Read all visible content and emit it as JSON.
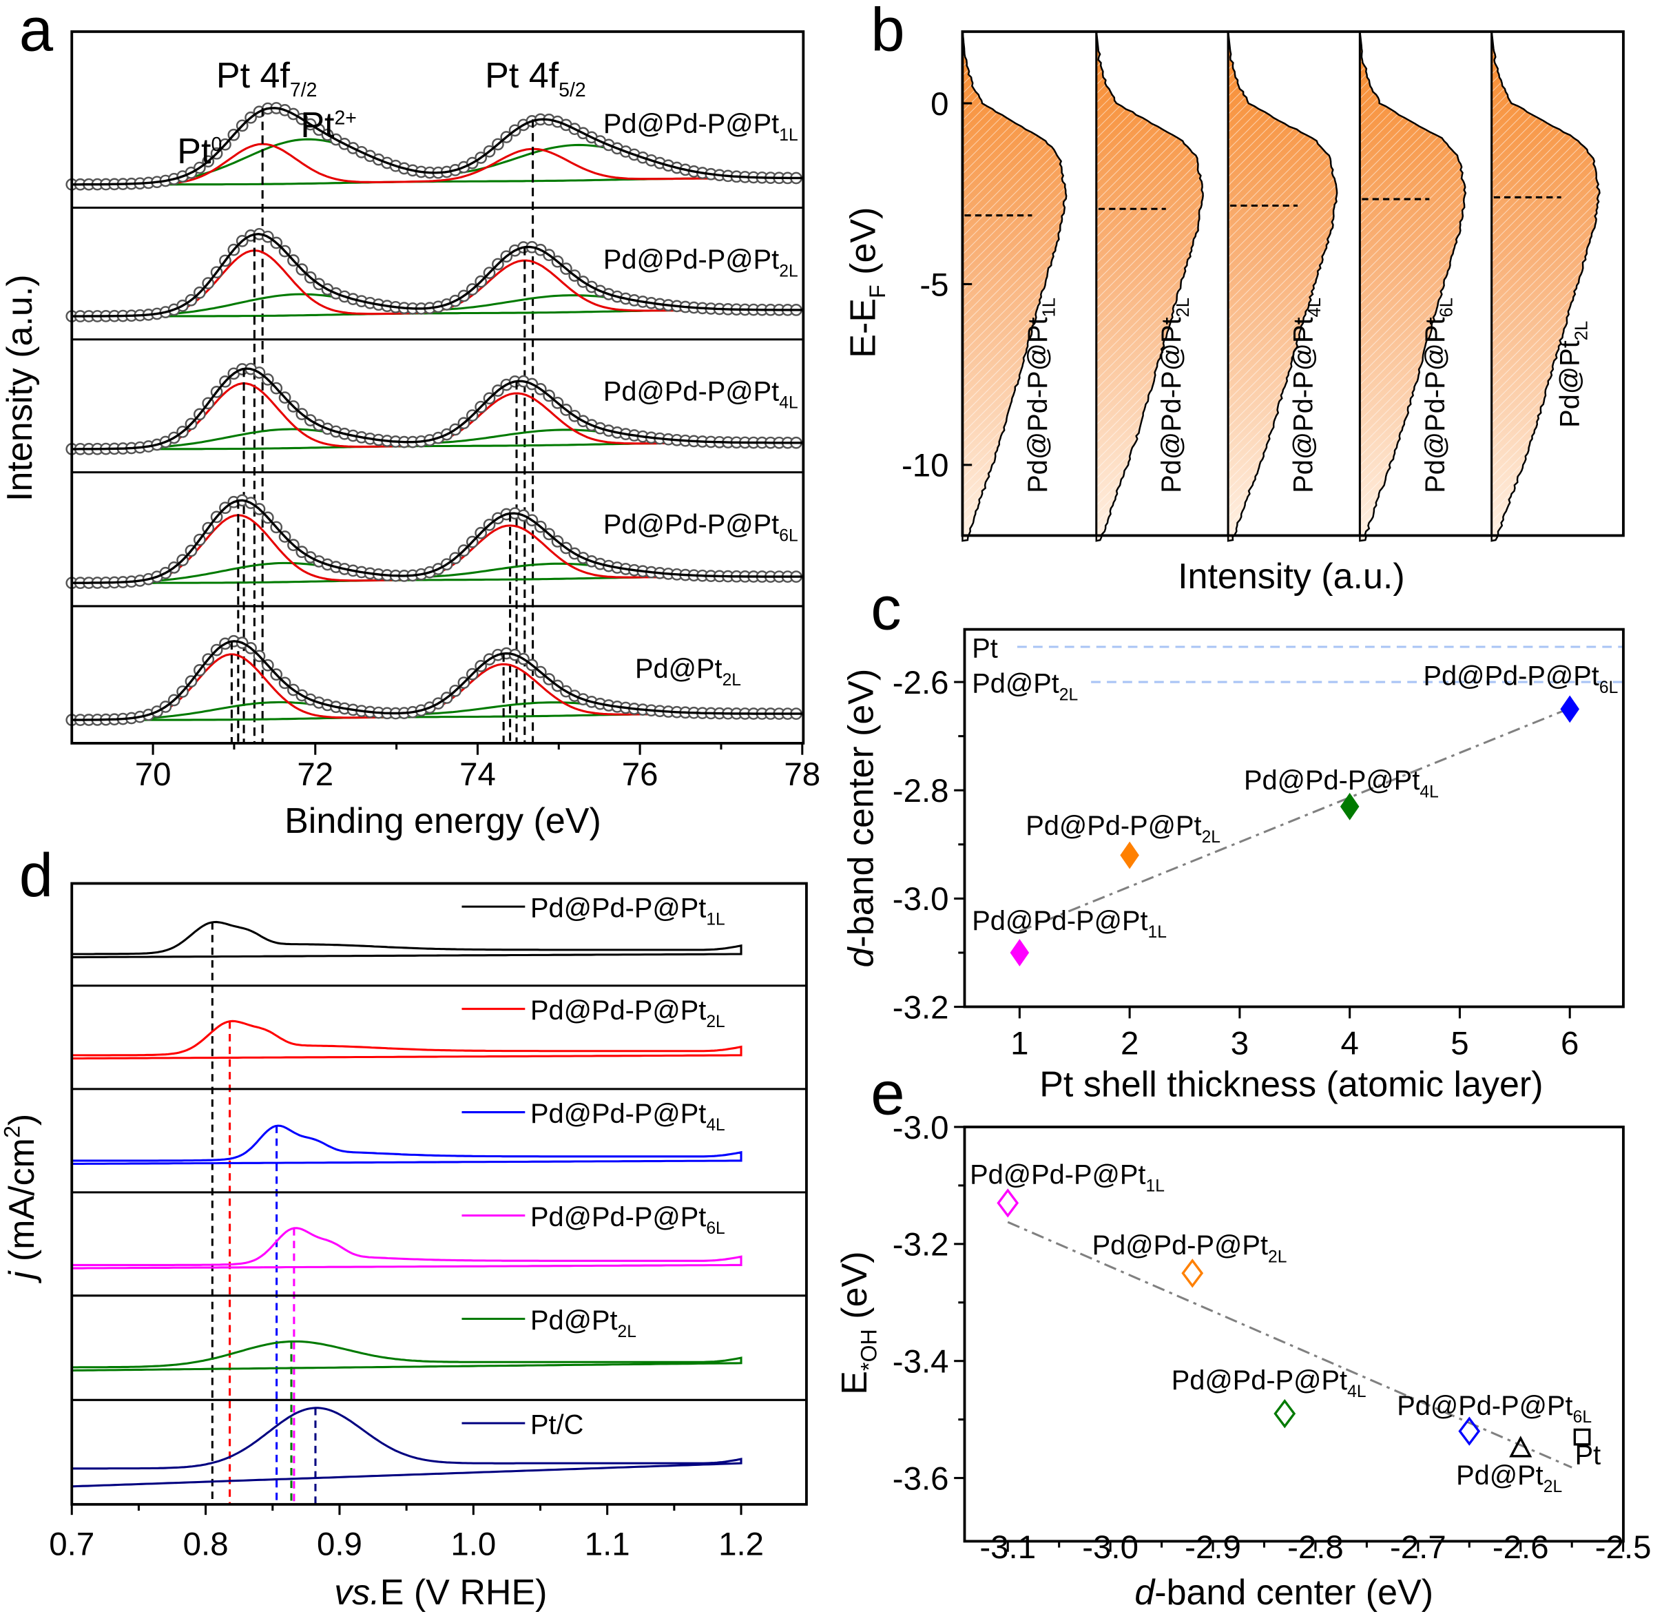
{
  "panel_letters": {
    "a": "a",
    "b": "b",
    "c": "c",
    "d": "d",
    "e": "e"
  },
  "chart_data": [
    {
      "panel": "a",
      "type": "line",
      "xlabel": "Binding energy (eV)",
      "ylabel": "Intensity (a.u.)",
      "xlim": [
        69,
        78
      ],
      "xticks": [
        "70",
        "72",
        "74",
        "76",
        "78"
      ],
      "peak_labels": [
        {
          "main": "Pt 4f",
          "sub": "7/2"
        },
        {
          "main": "Pt 4f",
          "sub": "5/2"
        }
      ],
      "component_labels": [
        {
          "main": "Pt",
          "sup": "0",
          "color": "#e60000"
        },
        {
          "main": "Pt",
          "sup": "2+",
          "color": "#007a00"
        }
      ],
      "colors": {
        "fit": "#000000",
        "data": "#555555",
        "pt0": "#e60000",
        "pt2": "#007a00"
      },
      "series": [
        {
          "name": {
            "main": "Pd@Pd-P@Pt",
            "sub": "1L"
          },
          "pt0_4f72_eV": 71.35,
          "pt0_4f52_eV": 74.68
        },
        {
          "name": {
            "main": "Pd@Pd-P@Pt",
            "sub": "2L"
          },
          "pt0_4f72_eV": 71.25,
          "pt0_4f52_eV": 74.58
        },
        {
          "name": {
            "main": "Pd@Pd-P@Pt",
            "sub": "4L"
          },
          "pt0_4f72_eV": 71.12,
          "pt0_4f52_eV": 74.48
        },
        {
          "name": {
            "main": "Pd@Pd-P@Pt",
            "sub": "6L"
          },
          "pt0_4f72_eV": 71.05,
          "pt0_4f52_eV": 74.4
        },
        {
          "name": {
            "main": "Pd@Pt",
            "sub": "2L"
          },
          "pt0_4f72_eV": 70.97,
          "pt0_4f52_eV": 74.32
        }
      ]
    },
    {
      "panel": "b",
      "type": "area",
      "xlabel": "Intensity (a.u.)",
      "ylabel": {
        "main": "E-E",
        "sub": "F",
        "end": " (eV)"
      },
      "ylim": [
        -12.1,
        2
      ],
      "yticks": [
        "0",
        "-5",
        "-10"
      ],
      "fill_color": "#f7892a",
      "series": [
        {
          "name": {
            "main": "Pd@Pd-P@Pt",
            "sub": "1L"
          },
          "d_band_center_eV": -3.1
        },
        {
          "name": {
            "main": "Pd@Pd-P@Pt",
            "sub": "2L"
          },
          "d_band_center_eV": -2.92
        },
        {
          "name": {
            "main": "Pd@Pd-P@Pt",
            "sub": "4L"
          },
          "d_band_center_eV": -2.83
        },
        {
          "name": {
            "main": "Pd@Pd-P@Pt",
            "sub": "6L"
          },
          "d_band_center_eV": -2.65
        },
        {
          "name": {
            "main": "Pd@Pt",
            "sub": "2L"
          },
          "d_band_center_eV": -2.6
        }
      ]
    },
    {
      "panel": "c",
      "type": "scatter",
      "xlabel": "Pt shell thickness (atomic layer)",
      "ylabel": {
        "italic": "d",
        "main": "-band center (eV)"
      },
      "xlim": [
        0.5,
        6.5
      ],
      "ylim": [
        -3.2,
        -2.5
      ],
      "xticks": [
        "1",
        "2",
        "3",
        "4",
        "5",
        "6"
      ],
      "yticks": [
        "-2.6",
        "-2.8",
        "-3.0",
        "-3.2"
      ],
      "reference_lines": [
        {
          "name": {
            "main": "Pt",
            "sub": ""
          },
          "y": -2.535,
          "color": "#a9c4f5"
        },
        {
          "name": {
            "main": "Pd@Pt",
            "sub": "2L"
          },
          "y": -2.6,
          "color": "#a9c4f5"
        }
      ],
      "points": [
        {
          "x": 1,
          "y": -3.1,
          "color": "#ff00ff",
          "name": {
            "main": "Pd@Pd-P@Pt",
            "sub": "1L"
          }
        },
        {
          "x": 2,
          "y": -2.92,
          "color": "#ff8000",
          "name": {
            "main": "Pd@Pd-P@Pt",
            "sub": "2L"
          }
        },
        {
          "x": 4,
          "y": -2.83,
          "color": "#007a00",
          "name": {
            "main": "Pd@Pd-P@Pt",
            "sub": "4L"
          }
        },
        {
          "x": 6,
          "y": -2.65,
          "color": "#0000ff",
          "name": {
            "main": "Pd@Pd-P@Pt",
            "sub": "6L"
          }
        }
      ],
      "fit_line": "dash-dot gray"
    },
    {
      "panel": "d",
      "type": "line",
      "xlabel": {
        "main": "E (V ",
        "italic": "vs.",
        "end": " RHE)"
      },
      "ylabel": {
        "italic": "j",
        "main": " (mA/cm",
        "sup": "2",
        "end": ")"
      },
      "xlim": [
        0.7,
        1.25
      ],
      "xticks": [
        "0.7",
        "0.8",
        "0.9",
        "1.0",
        "1.1",
        "1.2"
      ],
      "series": [
        {
          "name": {
            "main": "Pd@Pd-P@Pt",
            "sub": "1L"
          },
          "color": "#000000",
          "peak_V": 0.805
        },
        {
          "name": {
            "main": "Pd@Pd-P@Pt",
            "sub": "2L"
          },
          "color": "#ff0000",
          "peak_V": 0.818
        },
        {
          "name": {
            "main": "Pd@Pd-P@Pt",
            "sub": "4L"
          },
          "color": "#0000ff",
          "peak_V": 0.853
        },
        {
          "name": {
            "main": "Pd@Pd-P@Pt",
            "sub": "6L"
          },
          "color": "#ff00ff",
          "peak_V": 0.866
        },
        {
          "name": {
            "main": "Pd@Pt",
            "sub": "2L"
          },
          "color": "#007a00",
          "peak_V": 0.864
        },
        {
          "name": {
            "main": "Pt/C",
            "sub": ""
          },
          "color": "#000080",
          "peak_V": 0.882
        }
      ]
    },
    {
      "panel": "e",
      "type": "scatter",
      "xlabel": {
        "italic": "d",
        "main": "-band center (eV)"
      },
      "ylabel": {
        "main": "E",
        "sub": "*OH",
        "end": " (eV)"
      },
      "xlim": [
        -3.142,
        -2.5
      ],
      "ylim": [
        -3.66,
        -3.0
      ],
      "xticks": [
        "-3.1",
        "-3.0",
        "-2.9",
        "-2.8",
        "-2.7",
        "-2.6",
        "-2.5"
      ],
      "yticks": [
        "-3.0",
        "-3.2",
        "-3.4",
        "-3.6"
      ],
      "points": [
        {
          "x": -3.1,
          "y": -3.13,
          "marker": "diamond-open",
          "color": "#ff00ff",
          "name": {
            "main": "Pd@Pd-P@Pt",
            "sub": "1L"
          }
        },
        {
          "x": -2.92,
          "y": -3.25,
          "marker": "diamond-open",
          "color": "#ff8000",
          "name": {
            "main": "Pd@Pd-P@Pt",
            "sub": "2L"
          }
        },
        {
          "x": -2.83,
          "y": -3.49,
          "marker": "diamond-open",
          "color": "#007a00",
          "name": {
            "main": "Pd@Pd-P@Pt",
            "sub": "4L"
          }
        },
        {
          "x": -2.65,
          "y": -3.52,
          "marker": "diamond-open",
          "color": "#0000ff",
          "name": {
            "main": "Pd@Pd-P@Pt",
            "sub": "6L"
          }
        },
        {
          "x": -2.6,
          "y": -3.55,
          "marker": "triangle-open",
          "color": "#000000",
          "name": {
            "main": "Pd@Pt",
            "sub": "2L"
          }
        },
        {
          "x": -2.54,
          "y": -3.53,
          "marker": "square-open",
          "color": "#000000",
          "name": {
            "main": "Pt",
            "sub": ""
          }
        }
      ],
      "fit_line": "dash-dot gray"
    }
  ]
}
